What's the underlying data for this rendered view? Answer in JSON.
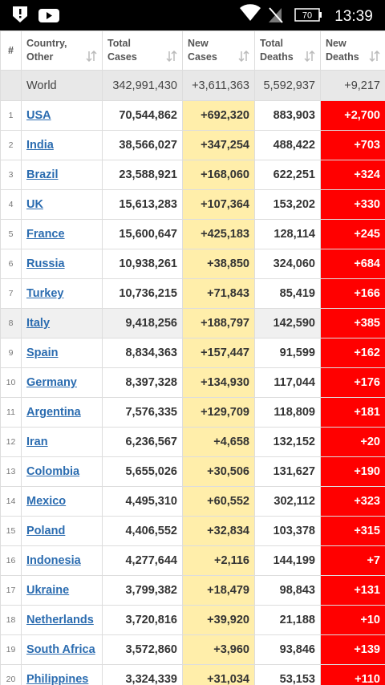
{
  "status_bar": {
    "battery": "70",
    "time": "13:39"
  },
  "table": {
    "headers": [
      [
        "#"
      ],
      [
        "Country,",
        "Other"
      ],
      [
        "Total",
        "Cases"
      ],
      [
        "New",
        "Cases"
      ],
      [
        "Total",
        "Deaths"
      ],
      [
        "New",
        "Deaths"
      ]
    ],
    "world": {
      "name": "World",
      "total_cases": "342,991,430",
      "new_cases": "+3,611,363",
      "total_deaths": "5,592,937",
      "new_deaths": "+9,217"
    },
    "rows": [
      [
        "1",
        "USA",
        "70,544,862",
        "+692,320",
        "883,903",
        "+2,700"
      ],
      [
        "2",
        "India",
        "38,566,027",
        "+347,254",
        "488,422",
        "+703"
      ],
      [
        "3",
        "Brazil",
        "23,588,921",
        "+168,060",
        "622,251",
        "+324"
      ],
      [
        "4",
        "UK",
        "15,613,283",
        "+107,364",
        "153,202",
        "+330"
      ],
      [
        "5",
        "France",
        "15,600,647",
        "+425,183",
        "128,114",
        "+245"
      ],
      [
        "6",
        "Russia",
        "10,938,261",
        "+38,850",
        "324,060",
        "+684"
      ],
      [
        "7",
        "Turkey",
        "10,736,215",
        "+71,843",
        "85,419",
        "+166"
      ],
      [
        "8",
        "Italy",
        "9,418,256",
        "+188,797",
        "142,590",
        "+385"
      ],
      [
        "9",
        "Spain",
        "8,834,363",
        "+157,447",
        "91,599",
        "+162"
      ],
      [
        "10",
        "Germany",
        "8,397,328",
        "+134,930",
        "117,044",
        "+176"
      ],
      [
        "11",
        "Argentina",
        "7,576,335",
        "+129,709",
        "118,809",
        "+181"
      ],
      [
        "12",
        "Iran",
        "6,236,567",
        "+4,658",
        "132,152",
        "+20"
      ],
      [
        "13",
        "Colombia",
        "5,655,026",
        "+30,506",
        "131,627",
        "+190"
      ],
      [
        "14",
        "Mexico",
        "4,495,310",
        "+60,552",
        "302,112",
        "+323"
      ],
      [
        "15",
        "Poland",
        "4,406,552",
        "+32,834",
        "103,378",
        "+315"
      ],
      [
        "16",
        "Indonesia",
        "4,277,644",
        "+2,116",
        "144,199",
        "+7"
      ],
      [
        "17",
        "Ukraine",
        "3,799,382",
        "+18,479",
        "98,843",
        "+131"
      ],
      [
        "18",
        "Netherlands",
        "3,720,816",
        "+39,920",
        "21,188",
        "+10"
      ],
      [
        "19",
        "South Africa",
        "3,572,860",
        "+3,960",
        "93,846",
        "+139"
      ],
      [
        "20",
        "Philippines",
        "3,324,339",
        "+31,034",
        "53,153",
        "+110"
      ]
    ]
  }
}
